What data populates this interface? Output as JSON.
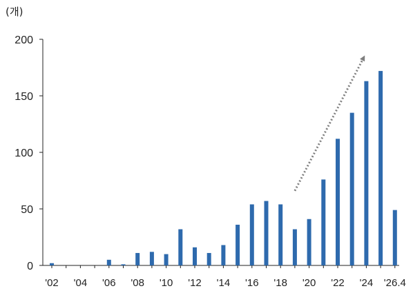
{
  "chart_data": {
    "type": "bar",
    "unit_label": "(개)",
    "title": "",
    "xlabel": "",
    "ylabel": "",
    "ylim": [
      0,
      200
    ],
    "y_ticks": [
      0,
      50,
      100,
      150,
      200
    ],
    "categories": [
      "'02",
      "'03",
      "'04",
      "'05",
      "'06",
      "'07",
      "'08",
      "'09",
      "'10",
      "'11",
      "'12",
      "'13",
      "'14",
      "'15",
      "'16",
      "'17",
      "'18",
      "'19",
      "'20",
      "'21",
      "'22",
      "'23",
      "'24",
      "'25",
      "'26.4"
    ],
    "x_tick_labels": [
      "'02",
      "",
      "'04",
      "",
      "'06",
      "",
      "'08",
      "",
      "'10",
      "",
      "'12",
      "",
      "'14",
      "",
      "'16",
      "",
      "'18",
      "",
      "'20",
      "",
      "'22",
      "",
      "'24",
      "",
      "'26.4"
    ],
    "values": [
      2,
      0,
      0,
      0,
      5,
      1,
      11,
      12,
      10,
      32,
      16,
      11,
      18,
      36,
      54,
      57,
      54,
      32,
      41,
      76,
      112,
      135,
      163,
      172,
      49
    ],
    "bar_color": "#2e6aad",
    "grid": false,
    "legend": "none",
    "annotation": {
      "type": "trend-arrow",
      "style": "dotted",
      "color": "#7f7f7f",
      "from": {
        "x": "'19",
        "y": 66
      },
      "to": {
        "x": "'24",
        "y": 186
      }
    }
  }
}
